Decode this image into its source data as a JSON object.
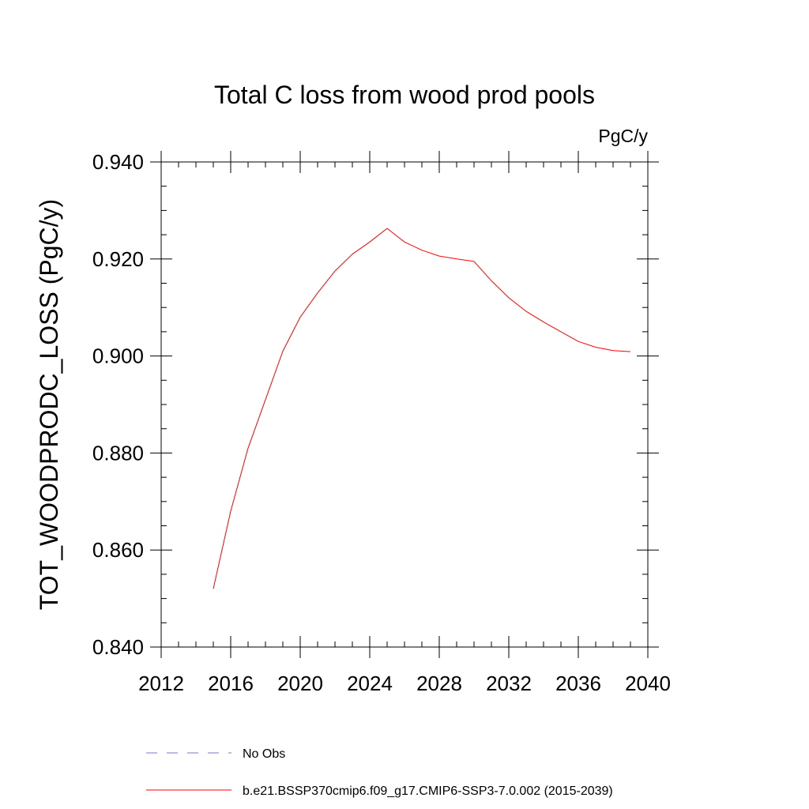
{
  "chart_data": {
    "type": "line",
    "title": "Total C loss from wood prod pools",
    "units_label": "PgC/y",
    "ylabel": "TOT_WOODPRODC_LOSS  (PgC/y)",
    "xlabel": "",
    "xlim": [
      2012,
      2040
    ],
    "ylim": [
      0.84,
      0.94
    ],
    "x_ticks": [
      2012,
      2016,
      2020,
      2024,
      2028,
      2032,
      2036,
      2040
    ],
    "x_tick_labels": [
      "2012",
      "2016",
      "2020",
      "2024",
      "2028",
      "2032",
      "2036",
      "2040"
    ],
    "y_ticks": [
      0.84,
      0.86,
      0.88,
      0.9,
      0.92,
      0.94
    ],
    "y_tick_labels": [
      "0.840",
      "0.860",
      "0.880",
      "0.900",
      "0.920",
      "0.940"
    ],
    "grid": false,
    "legend_placement": "bottom",
    "series": [
      {
        "name": "b.e21.BSSP370cmip6.f09_g17.CMIP6-SSP3-7.0.002 (2015-2039)",
        "color": "#ff0000",
        "style": "solid",
        "x": [
          2015,
          2016,
          2017,
          2018,
          2019,
          2020,
          2021,
          2022,
          2023,
          2024,
          2025,
          2026,
          2027,
          2028,
          2029,
          2030,
          2031,
          2032,
          2033,
          2034,
          2035,
          2036,
          2037,
          2038,
          2039
        ],
        "y": [
          0.852,
          0.868,
          0.881,
          0.891,
          0.901,
          0.908,
          0.913,
          0.9175,
          0.921,
          0.9235,
          0.9263,
          0.9235,
          0.9218,
          0.9206,
          0.92,
          0.9195,
          0.9155,
          0.912,
          0.9092,
          0.907,
          0.905,
          0.903,
          0.9018,
          0.9011,
          0.9009
        ]
      }
    ],
    "legend": [
      {
        "label": "No Obs",
        "color": "#7777cc",
        "style": "dashed"
      },
      {
        "label": "b.e21.BSSP370cmip6.f09_g17.CMIP6-SSP3-7.0.002 (2015-2039)",
        "color": "#ff0000",
        "style": "solid"
      }
    ]
  }
}
